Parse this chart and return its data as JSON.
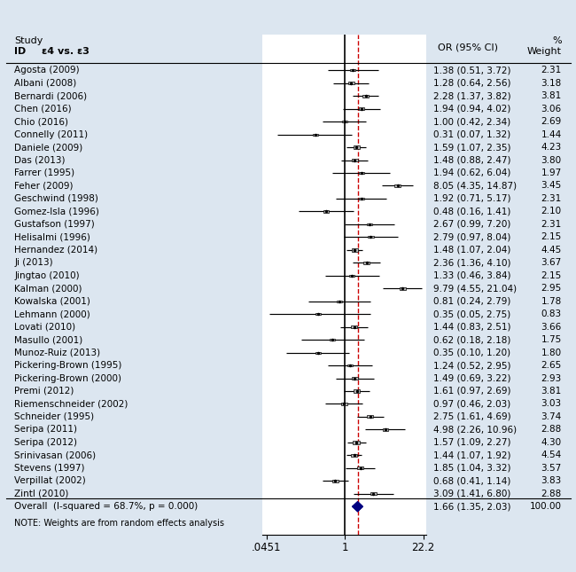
{
  "studies": [
    {
      "label": "Agosta (2009)",
      "or": 1.38,
      "ci_lo": 0.51,
      "ci_hi": 3.72,
      "weight": 2.31
    },
    {
      "label": "Albani (2008)",
      "or": 1.28,
      "ci_lo": 0.64,
      "ci_hi": 2.56,
      "weight": 3.18
    },
    {
      "label": "Bernardi (2006)",
      "or": 2.28,
      "ci_lo": 1.37,
      "ci_hi": 3.82,
      "weight": 3.81
    },
    {
      "label": "Chen (2016)",
      "or": 1.94,
      "ci_lo": 0.94,
      "ci_hi": 4.02,
      "weight": 3.06
    },
    {
      "label": "Chio (2016)",
      "or": 1.0,
      "ci_lo": 0.42,
      "ci_hi": 2.34,
      "weight": 2.69
    },
    {
      "label": "Connelly (2011)",
      "or": 0.31,
      "ci_lo": 0.07,
      "ci_hi": 1.32,
      "weight": 1.44
    },
    {
      "label": "Daniele (2009)",
      "or": 1.59,
      "ci_lo": 1.07,
      "ci_hi": 2.35,
      "weight": 4.23
    },
    {
      "label": "Das (2013)",
      "or": 1.48,
      "ci_lo": 0.88,
      "ci_hi": 2.47,
      "weight": 3.8
    },
    {
      "label": "Farrer (1995)",
      "or": 1.94,
      "ci_lo": 0.62,
      "ci_hi": 6.04,
      "weight": 1.97
    },
    {
      "label": "Feher (2009)",
      "or": 8.05,
      "ci_lo": 4.35,
      "ci_hi": 14.87,
      "weight": 3.45
    },
    {
      "label": "Geschwind (1998)",
      "or": 1.92,
      "ci_lo": 0.71,
      "ci_hi": 5.17,
      "weight": 2.31
    },
    {
      "label": "Gomez-Isla (1996)",
      "or": 0.48,
      "ci_lo": 0.16,
      "ci_hi": 1.41,
      "weight": 2.1
    },
    {
      "label": "Gustafson (1997)",
      "or": 2.67,
      "ci_lo": 0.99,
      "ci_hi": 7.2,
      "weight": 2.31
    },
    {
      "label": "Helisalmi (1996)",
      "or": 2.79,
      "ci_lo": 0.97,
      "ci_hi": 8.04,
      "weight": 2.15
    },
    {
      "label": "Hernandez (2014)",
      "or": 1.48,
      "ci_lo": 1.07,
      "ci_hi": 2.04,
      "weight": 4.45
    },
    {
      "label": "Ji (2013)",
      "or": 2.36,
      "ci_lo": 1.36,
      "ci_hi": 4.1,
      "weight": 3.67
    },
    {
      "label": "Jingtao (2010)",
      "or": 1.33,
      "ci_lo": 0.46,
      "ci_hi": 3.84,
      "weight": 2.15
    },
    {
      "label": "Kalman (2000)",
      "or": 9.79,
      "ci_lo": 4.55,
      "ci_hi": 21.04,
      "weight": 2.95
    },
    {
      "label": "Kowalska (2001)",
      "or": 0.81,
      "ci_lo": 0.24,
      "ci_hi": 2.79,
      "weight": 1.78
    },
    {
      "label": "Lehmann (2000)",
      "or": 0.35,
      "ci_lo": 0.05,
      "ci_hi": 2.75,
      "weight": 0.83
    },
    {
      "label": "Lovati (2010)",
      "or": 1.44,
      "ci_lo": 0.83,
      "ci_hi": 2.51,
      "weight": 3.66
    },
    {
      "label": "Masullo (2001)",
      "or": 0.62,
      "ci_lo": 0.18,
      "ci_hi": 2.18,
      "weight": 1.75
    },
    {
      "label": "Munoz-Ruiz (2013)",
      "or": 0.35,
      "ci_lo": 0.1,
      "ci_hi": 1.2,
      "weight": 1.8
    },
    {
      "label": "Pickering-Brown (1995)",
      "or": 1.24,
      "ci_lo": 0.52,
      "ci_hi": 2.95,
      "weight": 2.65
    },
    {
      "label": "Pickering-Brown (2000)",
      "or": 1.49,
      "ci_lo": 0.69,
      "ci_hi": 3.22,
      "weight": 2.93
    },
    {
      "label": "Premi (2012)",
      "or": 1.61,
      "ci_lo": 0.97,
      "ci_hi": 2.69,
      "weight": 3.81
    },
    {
      "label": "Riemenschneider (2002)",
      "or": 0.97,
      "ci_lo": 0.46,
      "ci_hi": 2.03,
      "weight": 3.03
    },
    {
      "label": "Schneider (1995)",
      "or": 2.75,
      "ci_lo": 1.61,
      "ci_hi": 4.69,
      "weight": 3.74
    },
    {
      "label": "Seripa (2011)",
      "or": 4.98,
      "ci_lo": 2.26,
      "ci_hi": 10.96,
      "weight": 2.88
    },
    {
      "label": "Seripa (2012)",
      "or": 1.57,
      "ci_lo": 1.09,
      "ci_hi": 2.27,
      "weight": 4.3
    },
    {
      "label": "Srinivasan (2006)",
      "or": 1.44,
      "ci_lo": 1.07,
      "ci_hi": 1.92,
      "weight": 4.54
    },
    {
      "label": "Stevens (1997)",
      "or": 1.85,
      "ci_lo": 1.04,
      "ci_hi": 3.32,
      "weight": 3.57
    },
    {
      "label": "Verpillat (2002)",
      "or": 0.68,
      "ci_lo": 0.41,
      "ci_hi": 1.14,
      "weight": 3.83
    },
    {
      "label": "Zintl (2010)",
      "or": 3.09,
      "ci_lo": 1.41,
      "ci_hi": 6.8,
      "weight": 2.88
    }
  ],
  "overall": {
    "label": "Overall  (I-squared = 68.7%, p = 0.000)",
    "or": 1.66,
    "ci_lo": 1.35,
    "ci_hi": 2.03,
    "weight": 100.0
  },
  "note": "NOTE: Weights are from random effects analysis",
  "xmin": 0.038,
  "xmax": 25.0,
  "xticks": [
    0.0451,
    1.0,
    22.2
  ],
  "xtick_labels": [
    ".0451",
    "1",
    "22.2"
  ],
  "vline_x": 1.0,
  "dashed_line_x": 1.66,
  "bg_color": "#dce6f0",
  "plot_bg_color": "#ffffff",
  "box_color": "#bbbbbb",
  "diamond_color": "#000080",
  "ci_line_color": "#000000",
  "dashed_color": "#cc0000",
  "fontsize_label": 7.5,
  "fontsize_header": 8.0,
  "fontsize_or": 7.5,
  "fontsize_weight": 7.5,
  "fontsize_note": 7.0,
  "fontsize_xtick": 8.5
}
